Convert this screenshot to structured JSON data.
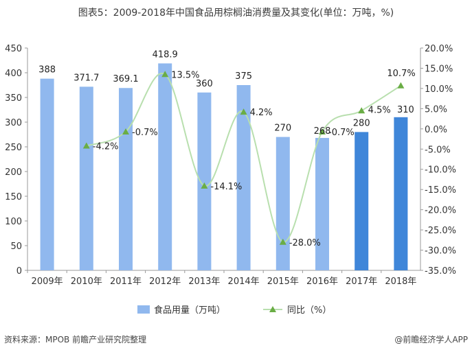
{
  "title": "图表5：2009-2018年中国食品用棕榈油消费量及其变化(单位：万吨，%)",
  "source": "资料来源：MPOB 前瞻产业研究院整理",
  "brand": "@前瞻经济学人APP",
  "colors": {
    "bar_light": "#90b8ee",
    "bar_dark": "#3f86d9",
    "line": "#b8dfae",
    "marker": "#6aad45"
  },
  "chart_data": {
    "type": "bar",
    "categories": [
      "2009年",
      "2010年",
      "2011年",
      "2012年",
      "2013年",
      "2014年",
      "2015年",
      "2016年",
      "2017年",
      "2018年"
    ],
    "series": [
      {
        "name": "食品用量（万吨）",
        "type": "bar",
        "axis": "left",
        "values": [
          388,
          371.7,
          369.1,
          418.9,
          360,
          375,
          270,
          268,
          280,
          310
        ],
        "labels": [
          "388",
          "371.7",
          "369.1",
          "418.9",
          "360",
          "375",
          "270",
          "268",
          "280",
          "310"
        ]
      },
      {
        "name": "同比（%）",
        "type": "line",
        "axis": "right",
        "values": [
          null,
          -4.2,
          -0.7,
          13.5,
          -14.1,
          4.2,
          -28.0,
          -0.7,
          4.5,
          10.7
        ],
        "labels": [
          "",
          "-4.2%",
          "-0.7%",
          "13.5%",
          "-14.1%",
          "4.2%",
          "-28.0%",
          "-0.7%",
          "4.5%",
          "10.7%"
        ]
      }
    ],
    "y_left": {
      "min": 0,
      "max": 450,
      "step": 50,
      "ticks": [
        "0",
        "50",
        "100",
        "150",
        "200",
        "250",
        "300",
        "350",
        "400",
        "450"
      ]
    },
    "y_right": {
      "min": -35,
      "max": 20,
      "step": 5,
      "ticks": [
        "-35.0%",
        "-30.0%",
        "-25.0%",
        "-20.0%",
        "-15.0%",
        "-10.0%",
        "-5.0%",
        "0.0%",
        "5.0%",
        "10.0%",
        "15.0%",
        "20.0%"
      ]
    },
    "grid": false,
    "legend_position": "bottom"
  }
}
